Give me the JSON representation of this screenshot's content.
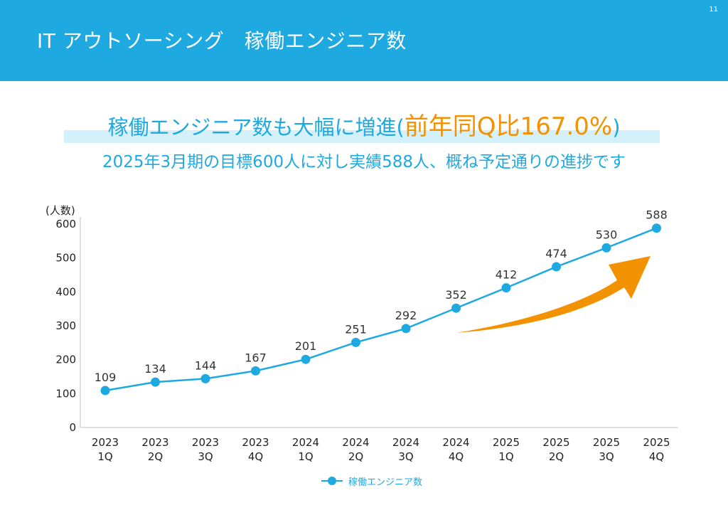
{
  "header": {
    "title": "IT アウトソーシング　稼働エンジニア数",
    "page_number": "11",
    "background": "#1fa9e1"
  },
  "headline": {
    "main": "稼働エンジニア数も大幅に増進(",
    "accent": "前年同Q比167.0%",
    "close": ")"
  },
  "subheadline": "2025年3月期の目標600人に対し実績588人、概ね予定通りの進捗です",
  "colors": {
    "primary": "#1fa9e1",
    "accent": "#f39200",
    "highlight": "#d4f1fb"
  },
  "chart_data": {
    "type": "line",
    "categories": [
      [
        "2023",
        "1Q"
      ],
      [
        "2023",
        "2Q"
      ],
      [
        "2023",
        "3Q"
      ],
      [
        "2023",
        "4Q"
      ],
      [
        "2024",
        "1Q"
      ],
      [
        "2024",
        "2Q"
      ],
      [
        "2024",
        "3Q"
      ],
      [
        "2024",
        "4Q"
      ],
      [
        "2025",
        "1Q"
      ],
      [
        "2025",
        "2Q"
      ],
      [
        "2025",
        "3Q"
      ],
      [
        "2025",
        "4Q"
      ]
    ],
    "series": [
      {
        "name": "稼働エンジニア数",
        "values": [
          109,
          134,
          144,
          167,
          201,
          251,
          292,
          352,
          412,
          474,
          530,
          588
        ],
        "color": "#1fa9e1"
      }
    ],
    "ylabel": "(人数)",
    "ylim": [
      0,
      600
    ],
    "yticks": [
      0,
      100,
      200,
      300,
      400,
      500,
      600
    ],
    "data_labels": true,
    "grid": false,
    "legend": "bottom-center",
    "decoration": "orange upward-trend arrow"
  }
}
